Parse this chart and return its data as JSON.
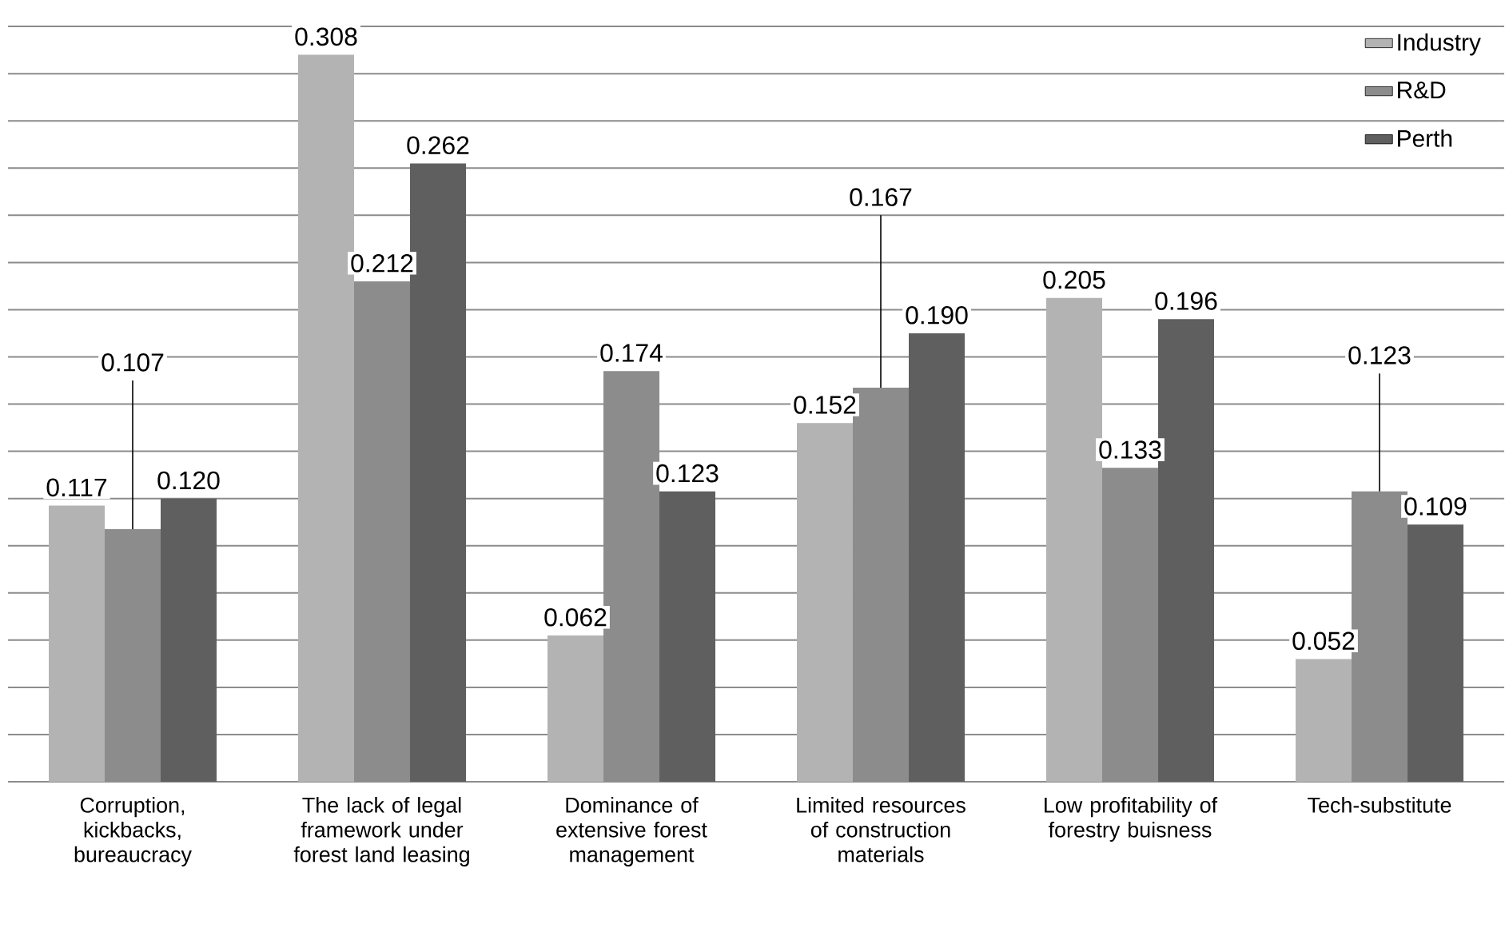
{
  "chart_data": {
    "type": "bar",
    "categories": [
      "Corruption, kickbacks, bureaucracy",
      "The lack of legal framework under forest land leasing",
      "Dominance of extensive forest management",
      "Limited resources of construction materials",
      "Low profitability of forestry buisness",
      "Tech-substitute"
    ],
    "series": [
      {
        "name": "Industry",
        "color": "#b3b3b3",
        "values": [
          0.117,
          0.308,
          0.062,
          0.152,
          0.205,
          0.052
        ],
        "value_labels": [
          "0.117",
          "0.308",
          "0.062",
          "0.152",
          "0.205",
          "0.052"
        ]
      },
      {
        "name": "R&D",
        "color": "#8c8c8c",
        "values": [
          0.107,
          0.212,
          0.174,
          0.167,
          0.133,
          0.123
        ],
        "value_labels": [
          "0.107",
          "0.212",
          "0.174",
          "0.167",
          "0.133",
          "0.123"
        ]
      },
      {
        "name": "Perth",
        "color": "#5f5f5f",
        "values": [
          0.12,
          0.262,
          0.123,
          0.19,
          0.196,
          0.109
        ],
        "value_labels": [
          "0.120",
          "0.262",
          "0.123",
          "0.190",
          "0.196",
          "0.109"
        ]
      }
    ],
    "tick_labels": "x",
    "grid": "y",
    "legend": "top right"
  }
}
